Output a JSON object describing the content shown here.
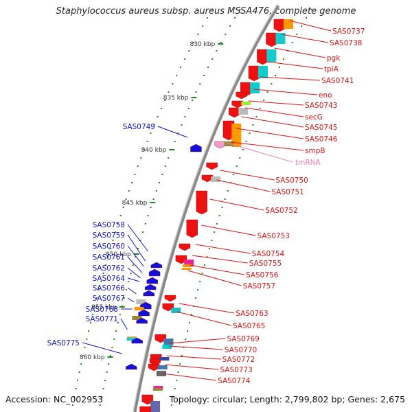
{
  "title": "Staphylococcus aureus subsp. aureus MSSA476, complete genome",
  "footer": {
    "accession": "Accession: NC_002953",
    "topology": "Topology: circular; Length: 2,799,802 bp; Genes: 2,675"
  },
  "colors": {
    "forward_label": "#e01010",
    "reverse_label": "#1010d8",
    "rna_label": "#f080b0",
    "tick": "#1a8a1a",
    "backbone": "#888888"
  },
  "scale_ticks": [
    "830 kbp",
    "835 kbp",
    "840 kbp",
    "845 kbp",
    "850 kbp",
    "855 kbp",
    "860 kbp"
  ],
  "forward_labels": [
    "SAS0737",
    "SAS0738",
    "pgk",
    "tpiA",
    "SAS0741",
    "eno",
    "SAS0743",
    "secG",
    "SAS0745",
    "SAS0746",
    "smpB",
    "SAS0750",
    "SAS0751",
    "SAS0752",
    "SAS0753",
    "SAS0754",
    "SAS0755",
    "SAS0756",
    "SAS0757",
    "SAS0763",
    "SAS0765",
    "SAS0769",
    "SAS0770",
    "SAS0772",
    "SAS0773",
    "SAS0774"
  ],
  "rna_labels": [
    "tmRNA"
  ],
  "reverse_labels": [
    "SAS0749",
    "SAS0758",
    "SAS0759",
    "SAS0760",
    "SAS0761",
    "SAS0762",
    "SAS0764",
    "SAS0766",
    "SAS0767",
    "SAS0768",
    "SAS0771",
    "SAS0775"
  ]
}
